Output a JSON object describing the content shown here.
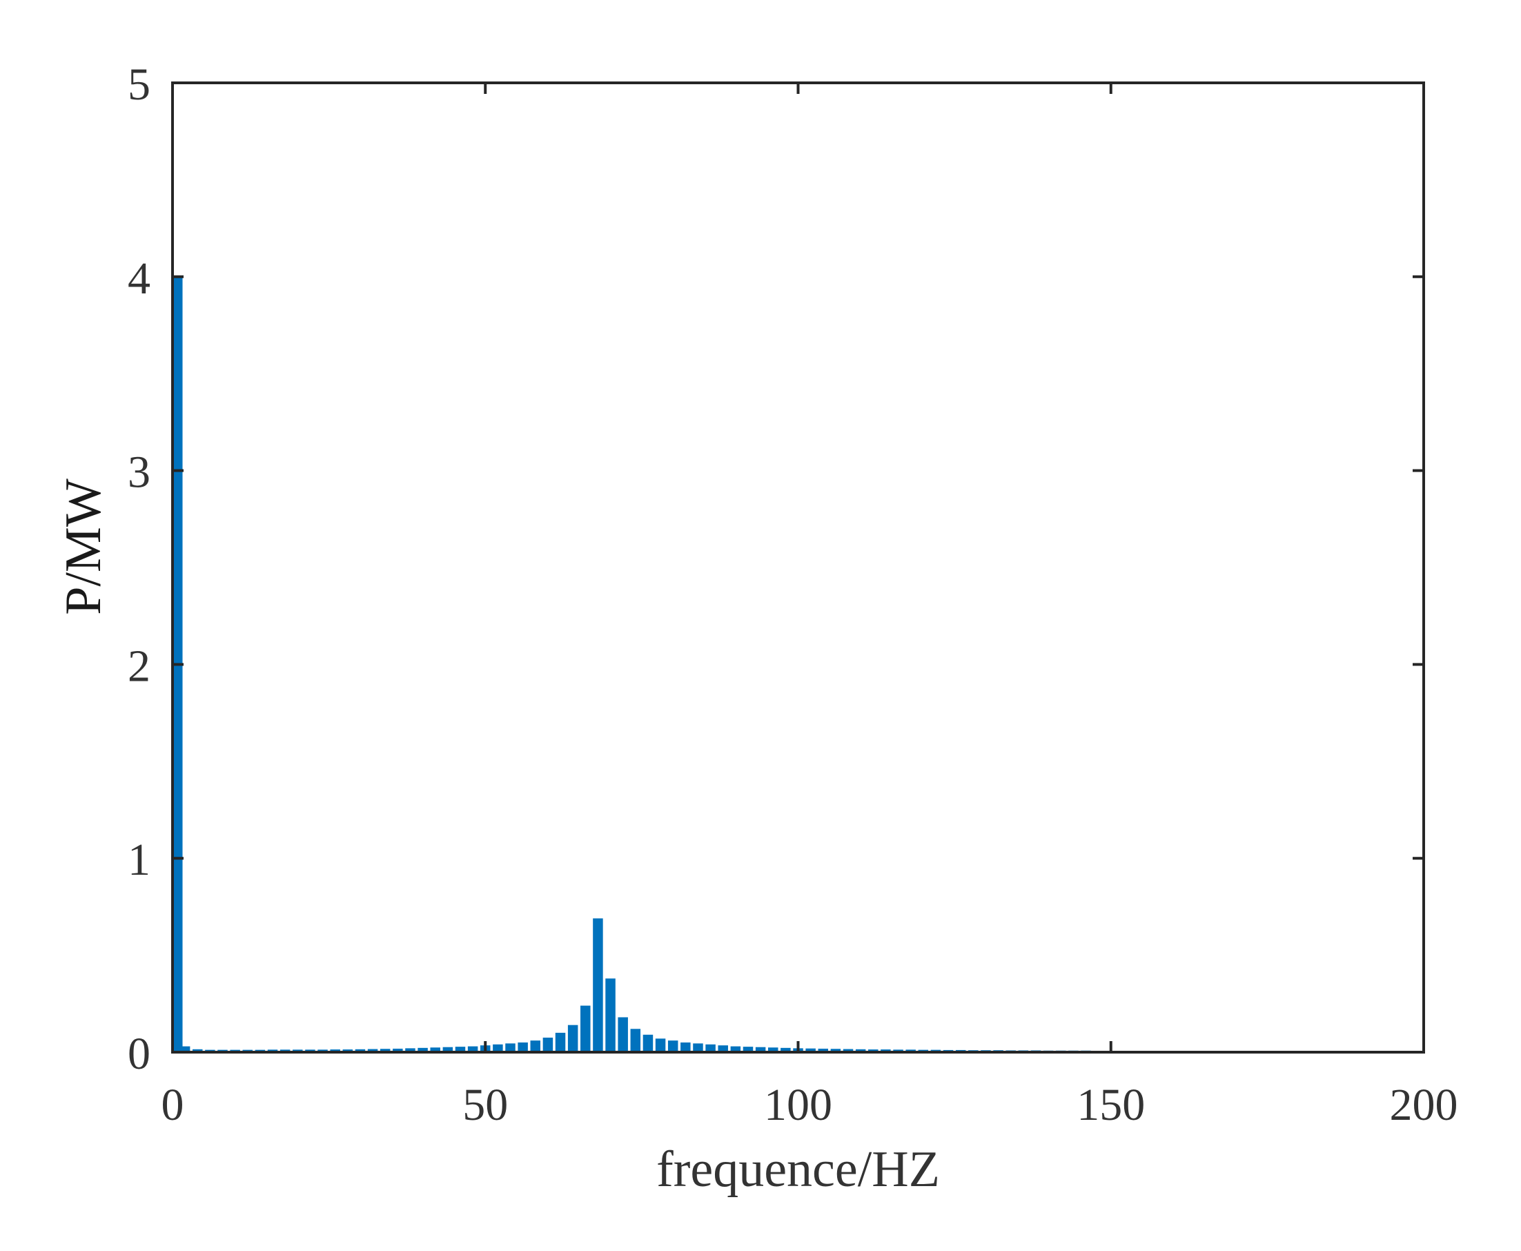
{
  "chart_data": {
    "type": "bar",
    "title": "",
    "xlabel": "frequence/HZ",
    "ylabel": "P/MW",
    "xlim": [
      0,
      200
    ],
    "ylim": [
      0,
      5
    ],
    "xticks": [
      "0",
      "50",
      "100",
      "150",
      "200"
    ],
    "yticks": [
      "0",
      "1",
      "2",
      "3",
      "4",
      "5"
    ],
    "grid": false,
    "bar_color": "#0072BD",
    "x": [
      0,
      2,
      4,
      6,
      8,
      10,
      12,
      14,
      16,
      18,
      20,
      22,
      24,
      26,
      28,
      30,
      32,
      34,
      36,
      38,
      40,
      42,
      44,
      46,
      48,
      50,
      52,
      54,
      56,
      58,
      60,
      62,
      64,
      66,
      68,
      70,
      72,
      74,
      76,
      78,
      80,
      82,
      84,
      86,
      88,
      90,
      92,
      94,
      96,
      98,
      100,
      102,
      104,
      106,
      108,
      110,
      112,
      114,
      116,
      118,
      120,
      122,
      124,
      126,
      128,
      130,
      132,
      134,
      136,
      138,
      140,
      142,
      144,
      146,
      148,
      150,
      152,
      154,
      156,
      158,
      160,
      162,
      164,
      166
    ],
    "values": [
      4.0,
      0.03,
      0.015,
      0.012,
      0.012,
      0.012,
      0.012,
      0.012,
      0.013,
      0.013,
      0.013,
      0.013,
      0.013,
      0.014,
      0.014,
      0.015,
      0.016,
      0.017,
      0.018,
      0.02,
      0.022,
      0.024,
      0.026,
      0.028,
      0.03,
      0.035,
      0.04,
      0.045,
      0.05,
      0.06,
      0.075,
      0.1,
      0.14,
      0.24,
      0.69,
      0.38,
      0.18,
      0.12,
      0.09,
      0.07,
      0.06,
      0.05,
      0.045,
      0.04,
      0.035,
      0.03,
      0.028,
      0.026,
      0.024,
      0.022,
      0.02,
      0.019,
      0.018,
      0.017,
      0.016,
      0.015,
      0.014,
      0.014,
      0.013,
      0.013,
      0.012,
      0.012,
      0.011,
      0.011,
      0.01,
      0.01,
      0.01,
      0.009,
      0.009,
      0.009,
      0.008,
      0.008,
      0.008,
      0.008,
      0.007,
      0.007,
      0.007,
      0.007,
      0.006,
      0.006,
      0.006,
      0.006,
      0.006,
      0.005
    ]
  }
}
